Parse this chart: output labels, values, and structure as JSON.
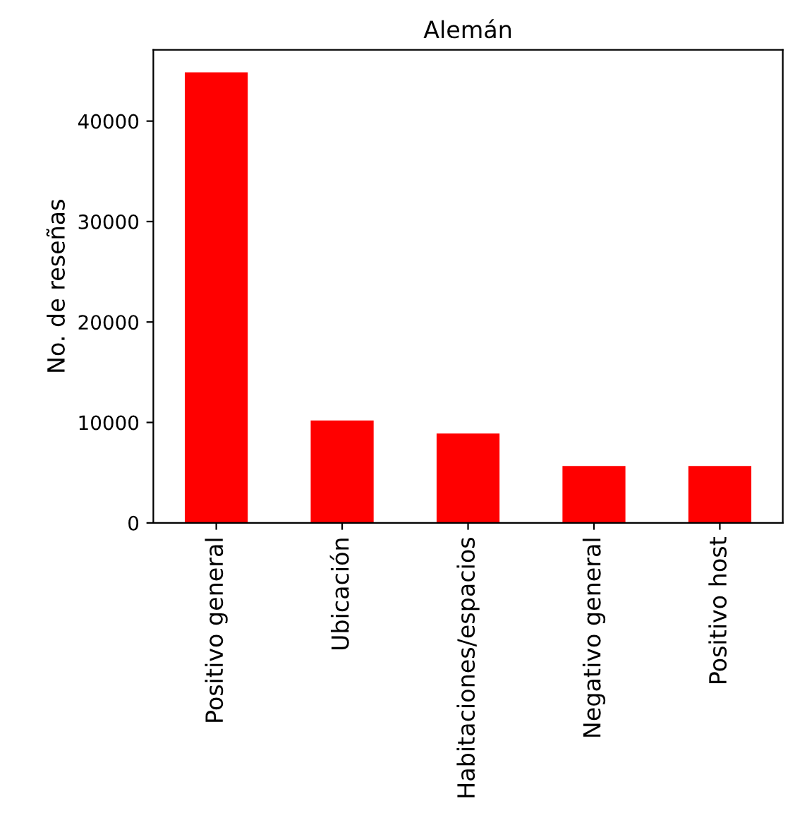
{
  "chart_data": {
    "type": "bar",
    "title": "Alemán",
    "ylabel": "No. de reseñas",
    "categories": [
      "Positivo general",
      "Ubicación",
      "Habitaciones/espacios",
      "Negativo general",
      "Positivo host"
    ],
    "values": [
      44850,
      10200,
      8900,
      5660,
      5660
    ],
    "color": "#ff0000",
    "ylim": [
      0,
      47100
    ],
    "yticks": [
      0,
      10000,
      20000,
      30000,
      40000
    ],
    "grid": false,
    "legend": false
  }
}
